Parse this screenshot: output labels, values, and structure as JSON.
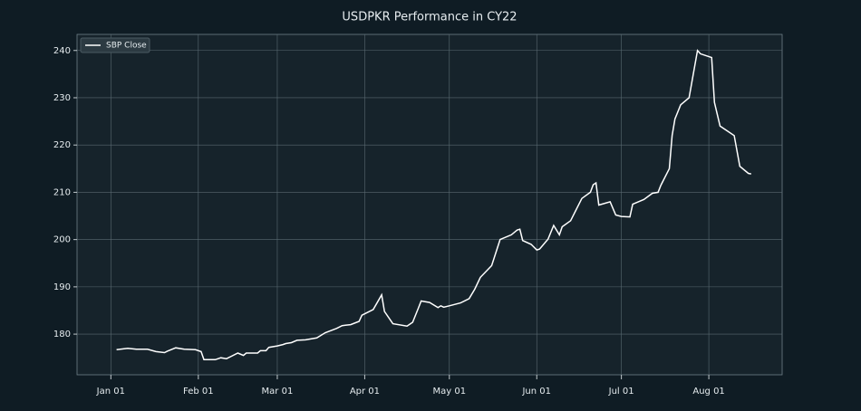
{
  "chart_data": {
    "type": "line",
    "title": "USDPKR Performance in CY22",
    "x": [
      "01-03",
      "01-07",
      "01-10",
      "01-14",
      "01-17",
      "01-20",
      "01-21",
      "01-24",
      "01-27",
      "01-31",
      "02-02",
      "02-03",
      "02-07",
      "02-09",
      "02-11",
      "02-15",
      "02-17",
      "02-18",
      "02-22",
      "02-23",
      "02-25",
      "02-26",
      "03-01",
      "03-03",
      "03-04",
      "03-06",
      "03-08",
      "03-11",
      "03-15",
      "03-18",
      "03-22",
      "03-24",
      "03-27",
      "03-30",
      "03-31",
      "04-04",
      "04-07",
      "04-08",
      "04-11",
      "04-16",
      "04-18",
      "04-20",
      "04-21",
      "04-24",
      "04-27",
      "04-28",
      "04-29",
      "05-01",
      "05-05",
      "05-08",
      "05-10",
      "05-12",
      "05-16",
      "05-19",
      "05-23",
      "05-25",
      "05-26",
      "05-27",
      "05-30",
      "06-01",
      "06-02",
      "06-05",
      "06-07",
      "06-09",
      "06-10",
      "06-13",
      "06-17",
      "06-20",
      "06-21",
      "06-22",
      "06-23",
      "06-27",
      "06-29",
      "07-01",
      "07-04",
      "07-05",
      "07-07",
      "07-09",
      "07-12",
      "07-14",
      "07-15",
      "07-18",
      "07-19",
      "07-20",
      "07-22",
      "07-25",
      "07-28",
      "07-29",
      "08-02",
      "08-03",
      "08-05",
      "08-10",
      "08-12",
      "08-15",
      "08-16"
    ],
    "series": [
      {
        "name": "SBP Close",
        "color": "#ffffff",
        "values": [
          176.7,
          177.0,
          176.8,
          176.8,
          176.3,
          176.1,
          176.4,
          177.1,
          176.8,
          176.7,
          176.3,
          174.6,
          174.6,
          175.0,
          174.8,
          176.0,
          175.5,
          176.0,
          176.0,
          176.5,
          176.5,
          177.2,
          177.5,
          177.8,
          178.0,
          178.2,
          178.7,
          178.8,
          179.2,
          180.3,
          181.2,
          181.8,
          182.0,
          182.7,
          184.0,
          185.2,
          188.3,
          184.8,
          182.2,
          181.7,
          182.5,
          185.5,
          187.0,
          186.7,
          185.6,
          186.0,
          185.7,
          186.0,
          186.6,
          187.5,
          189.5,
          192.0,
          194.5,
          200.0,
          201.0,
          202.0,
          202.2,
          199.8,
          199.0,
          197.8,
          198.0,
          200.1,
          203.0,
          201.0,
          202.7,
          204.0,
          208.7,
          210.0,
          211.6,
          212.0,
          207.3,
          208.0,
          205.2,
          204.9,
          204.8,
          207.5,
          208.0,
          208.5,
          209.8,
          210.0,
          211.5,
          215.0,
          222.0,
          225.5,
          228.5,
          230.0,
          240.0,
          239.3,
          238.5,
          229.0,
          224.0,
          222.0,
          215.5,
          214.0,
          213.9
        ]
      }
    ],
    "xlim": [
      "12-20",
      "08-27"
    ],
    "xticks": [
      {
        "value": "01-01",
        "label": "Jan 01"
      },
      {
        "value": "02-01",
        "label": "Feb 01"
      },
      {
        "value": "03-01",
        "label": "Mar 01"
      },
      {
        "value": "04-01",
        "label": "Apr 01"
      },
      {
        "value": "05-01",
        "label": "May 01"
      },
      {
        "value": "06-01",
        "label": "Jun 01"
      },
      {
        "value": "07-01",
        "label": "Jul 01"
      },
      {
        "value": "08-01",
        "label": "Aug 01"
      }
    ],
    "ylim": [
      171.4,
      243.4
    ],
    "yticks": [
      180,
      190,
      200,
      210,
      220,
      230,
      240
    ],
    "grid": true,
    "legend": "upper left"
  }
}
